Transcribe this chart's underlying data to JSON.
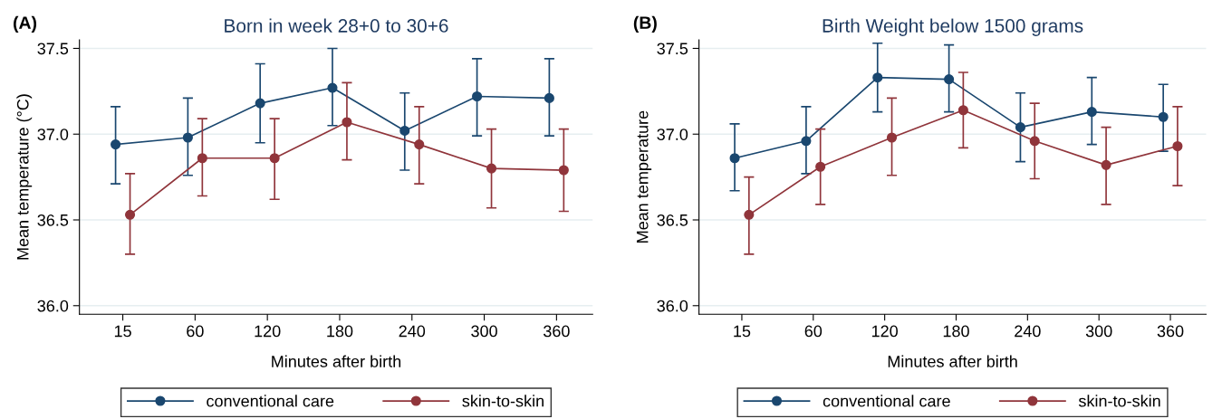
{
  "chart_data": [
    {
      "type": "line",
      "title": "Born in week 28+0 to 30+6",
      "xlabel": "Minutes after birth",
      "ylabel": "Mean temperature (°C)",
      "annotations": [
        "(A)"
      ],
      "categories": [
        "15",
        "60",
        "120",
        "180",
        "240",
        "300",
        "360"
      ],
      "ylim": [
        35.95,
        37.55
      ],
      "yticks": [
        {
          "value": 36,
          "label": "36.0"
        },
        {
          "value": 36.5,
          "label": "36.5"
        },
        {
          "value": 37,
          "label": "37.0"
        },
        {
          "value": 37.5,
          "label": "37.5"
        }
      ],
      "grid": "y",
      "legend": "bottom",
      "marker": "circle",
      "line_style": "solid",
      "series": [
        {
          "name": "conventional care",
          "color": "#1a476f",
          "values": [
            36.94,
            36.98,
            37.18,
            37.27,
            37.02,
            37.22,
            37.21
          ],
          "errors": [
            [
              36.71,
              37.16
            ],
            [
              36.76,
              37.21
            ],
            [
              36.95,
              37.41
            ],
            [
              37.05,
              37.5
            ],
            [
              36.79,
              37.24
            ],
            [
              36.99,
              37.44
            ],
            [
              36.99,
              37.44
            ]
          ]
        },
        {
          "name": "skin-to-skin",
          "color": "#90353b",
          "values": [
            36.53,
            36.86,
            36.86,
            37.07,
            36.94,
            36.8,
            36.79
          ],
          "errors": [
            [
              36.3,
              36.77
            ],
            [
              36.64,
              37.09
            ],
            [
              36.62,
              37.09
            ],
            [
              36.85,
              37.3
            ],
            [
              36.71,
              37.16
            ],
            [
              36.57,
              37.03
            ],
            [
              36.55,
              37.03
            ]
          ]
        }
      ]
    },
    {
      "type": "line",
      "title": "Birth Weight below 1500 grams",
      "xlabel": "Minutes after birth",
      "ylabel": "Mean temperature",
      "annotations": [
        "(B)"
      ],
      "categories": [
        "15",
        "60",
        "120",
        "180",
        "240",
        "300",
        "360"
      ],
      "ylim": [
        35.95,
        37.55
      ],
      "yticks": [
        {
          "value": 36,
          "label": "36.0"
        },
        {
          "value": 36.5,
          "label": "36.5"
        },
        {
          "value": 37,
          "label": "37.0"
        },
        {
          "value": 37.5,
          "label": "37.5"
        }
      ],
      "grid": "y",
      "legend": "bottom",
      "marker": "circle",
      "line_style": "solid",
      "series": [
        {
          "name": "conventional care",
          "color": "#1a476f",
          "values": [
            36.86,
            36.96,
            37.33,
            37.32,
            37.04,
            37.13,
            37.1
          ],
          "errors": [
            [
              36.67,
              37.06
            ],
            [
              36.77,
              37.16
            ],
            [
              37.13,
              37.53
            ],
            [
              37.13,
              37.52
            ],
            [
              36.84,
              37.24
            ],
            [
              36.94,
              37.33
            ],
            [
              36.9,
              37.29
            ]
          ]
        },
        {
          "name": "skin-to-skin",
          "color": "#90353b",
          "values": [
            36.53,
            36.81,
            36.98,
            37.14,
            36.96,
            36.82,
            36.93
          ],
          "errors": [
            [
              36.3,
              36.75
            ],
            [
              36.59,
              37.03
            ],
            [
              36.76,
              37.21
            ],
            [
              36.92,
              37.36
            ],
            [
              36.74,
              37.18
            ],
            [
              36.59,
              37.04
            ],
            [
              36.7,
              37.16
            ]
          ]
        }
      ]
    }
  ]
}
